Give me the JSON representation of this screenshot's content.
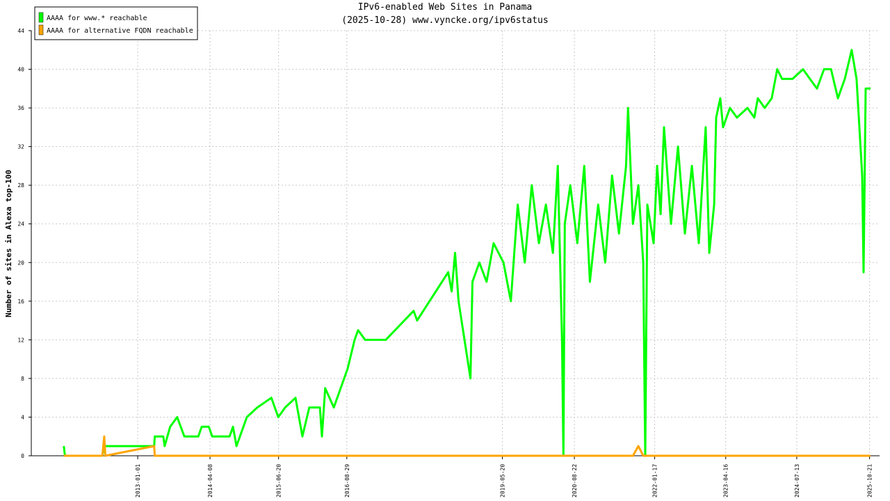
{
  "chart_data": {
    "type": "line",
    "title": "IPv6-enabled Web Sites in Panama",
    "subtitle": "(2025-10-28) www.vyncke.org/ipv6status",
    "y_label": "Number of sites in Alexa top-100",
    "x": [
      "2011-09-17",
      "2011-09-24",
      "2012-05-20",
      "2012-06-01",
      "2012-06-08",
      "2013-04-16",
      "2013-04-20",
      "2013-06-13",
      "2013-06-22",
      "2013-07-27",
      "2013-09-10",
      "2013-10-26",
      "2014-01-23",
      "2014-02-14",
      "2014-03-31",
      "2014-04-22",
      "2014-08-11",
      "2014-09-02",
      "2014-09-24",
      "2014-11-29",
      "2015-02-04",
      "2015-05-05",
      "2015-06-18",
      "2015-08-01",
      "2015-10-06",
      "2015-11-19",
      "2016-01-02",
      "2016-03-10",
      "2016-03-23",
      "2016-04-13",
      "2016-06-07",
      "2016-07-21",
      "2016-09-03",
      "2016-10-18",
      "2016-11-09",
      "2016-12-24",
      "2017-05-05",
      "2017-10-30",
      "2017-11-21",
      "2018-06-08",
      "2018-06-30",
      "2018-07-22",
      "2018-08-13",
      "2018-10-28",
      "2018-11-10",
      "2018-12-24",
      "2019-02-08",
      "2019-03-25",
      "2019-05-27",
      "2019-07-13",
      "2019-08-26",
      "2019-10-10",
      "2019-11-24",
      "2020-01-08",
      "2020-02-22",
      "2020-04-07",
      "2020-05-08",
      "2020-06-04",
      "2020-06-13",
      "2020-06-22",
      "2020-07-27",
      "2020-09-10",
      "2020-10-24",
      "2020-11-29",
      "2021-01-21",
      "2021-03-07",
      "2021-04-20",
      "2021-06-03",
      "2021-07-18",
      "2021-07-31",
      "2021-08-31",
      "2021-10-05",
      "2021-11-05",
      "2021-11-18",
      "2021-12-01",
      "2022-01-10",
      "2022-02-02",
      "2022-02-24",
      "2022-03-18",
      "2022-05-01",
      "2022-06-15",
      "2022-07-29",
      "2022-09-12",
      "2022-10-26",
      "2022-12-09",
      "2023-01-01",
      "2023-02-01",
      "2023-02-14",
      "2023-03-12",
      "2023-03-30",
      "2023-05-13",
      "2023-06-27",
      "2023-09-02",
      "2023-10-16",
      "2023-11-07",
      "2023-12-21",
      "2024-02-04",
      "2024-03-10",
      "2024-04-10",
      "2024-06-16",
      "2024-08-22",
      "2024-10-05",
      "2024-11-19",
      "2025-01-03",
      "2025-02-17",
      "2025-04-02",
      "2025-05-16",
      "2025-06-29",
      "2025-07-30",
      "2025-09-04",
      "2025-09-13",
      "2025-09-26",
      "2025-10-27"
    ],
    "series": [
      {
        "name": "AAAA for www.* reachable",
        "color": "#00ff00",
        "values": [
          1,
          0,
          0,
          1,
          1,
          1,
          2,
          2,
          1,
          3,
          4,
          2,
          2,
          3,
          3,
          2,
          2,
          3,
          1,
          4,
          5,
          6,
          4,
          5,
          6,
          2,
          5,
          5,
          2,
          7,
          5,
          7,
          9,
          12,
          13,
          12,
          12,
          15,
          14,
          19,
          17,
          21,
          16,
          8,
          18,
          20,
          18,
          22,
          20,
          16,
          26,
          20,
          28,
          22,
          26,
          21,
          30,
          12,
          0,
          24,
          28,
          22,
          30,
          18,
          26,
          20,
          29,
          23,
          30,
          36,
          24,
          28,
          20,
          0,
          26,
          22,
          30,
          25,
          34,
          24,
          32,
          23,
          30,
          22,
          34,
          21,
          26,
          35,
          37,
          34,
          36,
          35,
          36,
          35,
          37,
          36,
          37,
          40,
          39,
          39,
          40,
          39,
          38,
          40,
          40,
          37,
          39,
          42,
          39,
          29,
          19,
          38,
          38
        ]
      },
      {
        "name": "AAAA for alternative FQDN reachable",
        "color": "#ffa500",
        "values": [
          0,
          0,
          0,
          2,
          0,
          1,
          0,
          0,
          0,
          0,
          0,
          0,
          0,
          0,
          0,
          0,
          0,
          0,
          0,
          0,
          0,
          0,
          0,
          0,
          0,
          0,
          0,
          0,
          0,
          0,
          0,
          0,
          0,
          0,
          0,
          0,
          0,
          0,
          0,
          0,
          0,
          0,
          0,
          0,
          0,
          0,
          0,
          0,
          0,
          0,
          0,
          0,
          0,
          0,
          0,
          0,
          0,
          0,
          0,
          0,
          0,
          0,
          0,
          0,
          0,
          0,
          0,
          0,
          0,
          0,
          0,
          1,
          0,
          0,
          0,
          0,
          0,
          0,
          0,
          0,
          0,
          0,
          0,
          0,
          0,
          0,
          0,
          0,
          0,
          0,
          0,
          0,
          0,
          0,
          0,
          0,
          0,
          0,
          0,
          0,
          0,
          0,
          0,
          0,
          0,
          0,
          0,
          0,
          0,
          0,
          0,
          0,
          0
        ]
      }
    ],
    "xlim": [
      "2011-02-21",
      "2025-12-24"
    ],
    "xticks": [
      "2013-01-01",
      "2014-04-08",
      "2015-06-20",
      "2016-08-29",
      "2019-05-20",
      "2020-08-22",
      "2022-01-17",
      "2023-04-16",
      "2024-07-13",
      "2025-10-21"
    ],
    "ylim": [
      0,
      44
    ],
    "yticks": [
      0,
      4,
      8,
      12,
      16,
      20,
      24,
      28,
      32,
      36,
      40,
      44
    ],
    "grid": true,
    "legend": "upper-left"
  }
}
